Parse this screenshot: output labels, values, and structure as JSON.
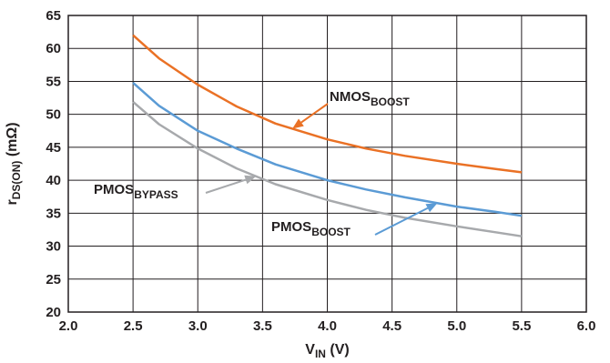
{
  "chart_data": {
    "type": "line",
    "xlabel": {
      "main": "V",
      "sub": "IN",
      "suffix": " (V)"
    },
    "ylabel": {
      "main": "r",
      "sub": "DS(ON)",
      "suffix": " (mΩ)"
    },
    "xlim": [
      2.0,
      6.0
    ],
    "ylim": [
      20,
      65
    ],
    "xticks": [
      2.0,
      2.5,
      3.0,
      3.5,
      4.0,
      4.5,
      5.0,
      5.5,
      6.0
    ],
    "xtick_labels": [
      "2.0",
      "2.5",
      "3.0",
      "3.5",
      "4.0",
      "4.5",
      "5.0",
      "5.5",
      "6.0"
    ],
    "yticks": [
      20,
      25,
      30,
      35,
      40,
      45,
      50,
      55,
      60,
      65
    ],
    "ytick_labels": [
      "20",
      "25",
      "30",
      "35",
      "40",
      "45",
      "50",
      "55",
      "60",
      "65"
    ],
    "grid": true,
    "series": [
      {
        "name": "NMOS_BOOST",
        "label_main": "NMOS",
        "label_sub": "BOOST",
        "color": "#ea7125",
        "x": [
          2.5,
          2.7,
          3.0,
          3.3,
          3.6,
          4.0,
          4.3,
          4.6,
          5.0,
          5.3,
          5.5
        ],
        "y": [
          62.0,
          58.5,
          54.5,
          51.2,
          48.6,
          46.2,
          44.8,
          43.7,
          42.5,
          41.7,
          41.2
        ]
      },
      {
        "name": "PMOS_BOOST",
        "label_main": "PMOS",
        "label_sub": "BOOST",
        "color": "#5b9bd5",
        "x": [
          2.5,
          2.7,
          3.0,
          3.3,
          3.6,
          4.0,
          4.3,
          4.6,
          5.0,
          5.3,
          5.5
        ],
        "y": [
          54.8,
          51.3,
          47.5,
          44.8,
          42.4,
          40.0,
          38.6,
          37.4,
          36.0,
          35.2,
          34.6
        ]
      },
      {
        "name": "PMOS_BYPASS",
        "label_main": "PMOS",
        "label_sub": "BYPASS",
        "color": "#a7a9ac",
        "x": [
          2.5,
          2.7,
          3.0,
          3.3,
          3.6,
          4.0,
          4.3,
          4.6,
          5.0,
          5.3,
          5.5
        ],
        "y": [
          51.9,
          48.5,
          44.8,
          41.8,
          39.4,
          37.0,
          35.5,
          34.3,
          33.0,
          32.1,
          31.5
        ]
      }
    ]
  }
}
